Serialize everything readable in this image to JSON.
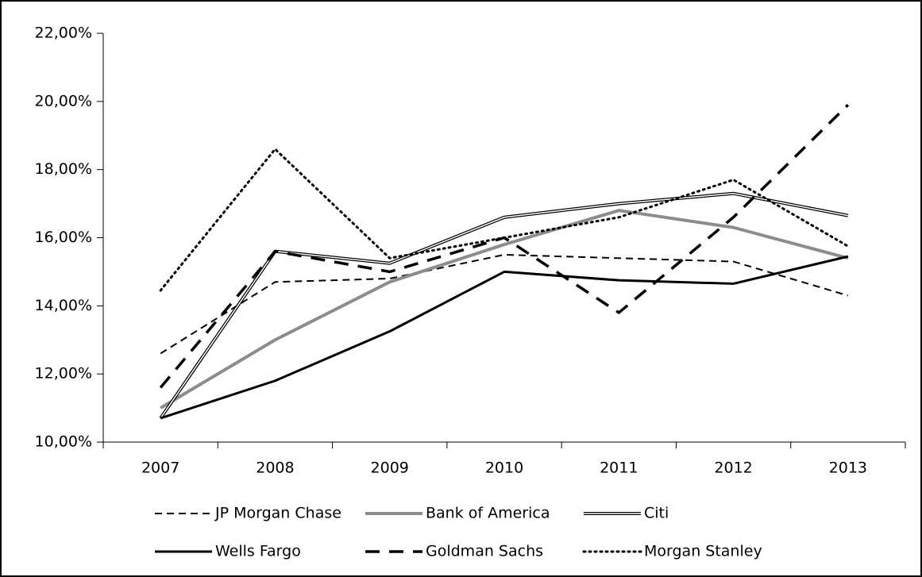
{
  "chart_data": {
    "type": "line",
    "categories": [
      "2007",
      "2008",
      "2009",
      "2010",
      "2011",
      "2012",
      "2013"
    ],
    "ylim": [
      10,
      22
    ],
    "yticks": [
      {
        "value": 10,
        "label": "10,00%"
      },
      {
        "value": 12,
        "label": "12,00%"
      },
      {
        "value": 14,
        "label": "14,00%"
      },
      {
        "value": 16,
        "label": "16,00%"
      },
      {
        "value": 18,
        "label": "18,00%"
      },
      {
        "value": 20,
        "label": "20,00%"
      },
      {
        "value": 22,
        "label": "22,00%"
      }
    ],
    "grid": false,
    "legend": "bottom",
    "series": [
      {
        "name": "JP Morgan Chase",
        "color": "#000000",
        "style": "dashed",
        "values": [
          12.6,
          14.7,
          14.8,
          15.5,
          15.4,
          15.3,
          14.3
        ]
      },
      {
        "name": "Bank of America",
        "color": "#8c8c8c",
        "style": "solid",
        "values": [
          11.0,
          13.0,
          14.7,
          15.8,
          16.8,
          16.3,
          15.4
        ]
      },
      {
        "name": "Citi",
        "color": "#000000",
        "style": "double",
        "values": [
          10.7,
          15.6,
          15.25,
          16.6,
          17.0,
          17.3,
          16.65
        ]
      },
      {
        "name": "Wells Fargo",
        "color": "#000000",
        "style": "solid",
        "values": [
          10.7,
          11.8,
          13.25,
          15.0,
          14.75,
          14.65,
          15.45
        ]
      },
      {
        "name": "Goldman Sachs",
        "color": "#000000",
        "style": "longdash",
        "values": [
          11.6,
          15.6,
          15.0,
          16.0,
          13.8,
          16.6,
          19.9
        ]
      },
      {
        "name": "Morgan Stanley",
        "color": "#000000",
        "style": "dotted",
        "values": [
          14.45,
          18.6,
          15.4,
          16.0,
          16.6,
          17.7,
          15.75
        ]
      }
    ]
  }
}
